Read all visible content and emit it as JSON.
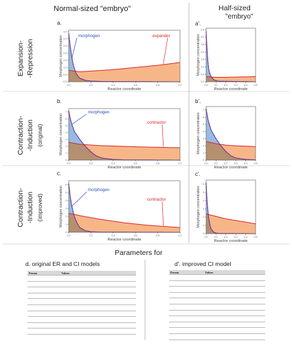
{
  "headers": {
    "normal": "Normal-sized \"embryo\"",
    "half_line1": "Half-sized",
    "half_line2": "\"embryo\""
  },
  "row_labels": [
    {
      "line1": "Expansion-",
      "line2": "-Repression",
      "sub": ""
    },
    {
      "line1": "Contraction-",
      "line2": "-Induction",
      "sub": "(original)"
    },
    {
      "line1": "Contraction-",
      "line2": "-Induction",
      "sub": "(improved)"
    }
  ],
  "colors": {
    "morphogen": "#2a4fb8",
    "morphogen_fill": "#8fb8e0",
    "regulator": "#d62728",
    "regulator_fill": "#f7b688",
    "overlap_fill": "#b59070",
    "dashed": "#b0166e"
  },
  "chart_data": [
    {
      "panel": "a.",
      "type": "area",
      "xlabel": "Reactor coordinate",
      "ylabel": "Morphogen concentration",
      "xticks": [
        "0.0",
        "0.2",
        "0.4",
        "0.6",
        "0.8",
        "1.0"
      ],
      "yticks": [
        "0.0",
        "0.5",
        "1.0",
        "1.5",
        "2.0",
        "2.5",
        "3.0",
        "3.5"
      ],
      "xlim": [
        0,
        1
      ],
      "ylim": [
        0,
        3.6
      ],
      "annotations": [
        "morphogen",
        "expander"
      ],
      "series": [
        {
          "name": "morphogen",
          "x": [
            0,
            0.02,
            0.04,
            0.06,
            0.08,
            0.1,
            0.15,
            0.2,
            0.3,
            1.0
          ],
          "values": [
            3.4,
            2.1,
            1.2,
            0.7,
            0.4,
            0.25,
            0.1,
            0.05,
            0.02,
            0.0
          ]
        },
        {
          "name": "expander",
          "x": [
            0,
            0.1,
            0.2,
            0.4,
            0.6,
            0.8,
            1.0
          ],
          "values": [
            0.8,
            0.7,
            0.75,
            0.85,
            1.0,
            1.15,
            1.35
          ]
        }
      ]
    },
    {
      "panel": "b.",
      "type": "area",
      "xlabel": "Reactor coordinate",
      "ylabel": "Morphogen concentration",
      "xticks": [
        "0.0",
        "0.2",
        "0.4",
        "0.6",
        "0.8",
        "1.0"
      ],
      "yticks": [
        "0",
        "1",
        "2",
        "3",
        "4",
        "5",
        "6",
        "7"
      ],
      "xlim": [
        0,
        1
      ],
      "ylim": [
        0,
        7.5
      ],
      "annotations": [
        "morphogen",
        "contractor"
      ],
      "series": [
        {
          "name": "morphogen",
          "x": [
            0,
            0.02,
            0.05,
            0.1,
            0.15,
            0.2,
            0.25,
            0.3,
            0.4,
            0.5,
            1.0
          ],
          "values": [
            7.2,
            5.6,
            4.2,
            3.0,
            2.0,
            1.2,
            0.6,
            0.3,
            0.1,
            0.03,
            0.0
          ]
        },
        {
          "name": "contractor",
          "x": [
            0,
            0.1,
            0.3,
            0.5,
            0.7,
            1.0
          ],
          "values": [
            2.6,
            2.3,
            2.1,
            2.0,
            1.9,
            1.8
          ]
        }
      ]
    },
    {
      "panel": "c.",
      "type": "area",
      "xlabel": "Reactor coordinate",
      "ylabel": "Morphogen concentration",
      "xticks": [
        "0.0",
        "0.2",
        "0.4",
        "0.6",
        "0.8",
        "1.0"
      ],
      "yticks": [
        "0",
        "1",
        "2",
        "3",
        "4",
        "5",
        "6"
      ],
      "xlim": [
        0,
        1
      ],
      "ylim": [
        0,
        6.5
      ],
      "annotations": [
        "morphogen",
        "contractor"
      ],
      "series": [
        {
          "name": "morphogen",
          "x": [
            0,
            0.02,
            0.05,
            0.08,
            0.1,
            0.15,
            0.2,
            0.3,
            1.0
          ],
          "values": [
            6.2,
            3.8,
            2.0,
            1.0,
            0.6,
            0.2,
            0.07,
            0.02,
            0.0
          ]
        },
        {
          "name": "contractor",
          "x": [
            0,
            0.1,
            0.3,
            0.5,
            0.7,
            1.0
          ],
          "values": [
            2.4,
            2.1,
            1.6,
            1.2,
            0.9,
            0.6
          ]
        }
      ]
    },
    {
      "panel": "a'.",
      "type": "area",
      "xlabel": "Reactor coordinate",
      "ylabel": "Morphogen concentration",
      "xticks": [
        "0.0",
        "0.1",
        "0.2",
        "0.3",
        "0.4",
        "0.5"
      ],
      "yticks": [
        "0.0",
        "0.5",
        "1.0",
        "1.5",
        "2.0",
        "2.5",
        "3.0",
        "3.5"
      ],
      "xlim": [
        0,
        0.5
      ],
      "ylim": [
        0,
        3.6
      ],
      "series": [
        {
          "name": "morphogen",
          "x": [
            0,
            0.01,
            0.02,
            0.03,
            0.05,
            0.08,
            0.12,
            0.5
          ],
          "values": [
            3.4,
            2.1,
            1.2,
            0.7,
            0.35,
            0.12,
            0.04,
            0.0
          ]
        },
        {
          "name": "expander",
          "x": [
            0,
            0.1,
            0.2,
            0.3,
            0.4,
            0.5
          ],
          "values": [
            0.35,
            0.3,
            0.3,
            0.32,
            0.33,
            0.35
          ]
        }
      ]
    },
    {
      "panel": "b'.",
      "type": "area",
      "xlabel": "Reactor coordinate",
      "ylabel": "Morphogen concentration",
      "xticks": [
        "0.0",
        "0.1",
        "0.2",
        "0.3",
        "0.4",
        "0.5"
      ],
      "yticks": [
        "0",
        "1",
        "2",
        "3",
        "4",
        "5",
        "6",
        "7"
      ],
      "xlim": [
        0,
        0.5
      ],
      "ylim": [
        0,
        7.5
      ],
      "series": [
        {
          "name": "morphogen",
          "x": [
            0,
            0.02,
            0.05,
            0.1,
            0.15,
            0.2,
            0.25,
            0.3,
            0.4,
            0.5
          ],
          "values": [
            7.2,
            5.6,
            4.2,
            3.0,
            2.0,
            1.2,
            0.6,
            0.3,
            0.1,
            0.03
          ]
        },
        {
          "name": "contractor",
          "x": [
            0,
            0.1,
            0.2,
            0.3,
            0.4,
            0.5
          ],
          "values": [
            2.6,
            2.3,
            2.1,
            2.0,
            1.95,
            1.9
          ]
        }
      ]
    },
    {
      "panel": "c'.",
      "type": "area",
      "xlabel": "Reactor coordinate",
      "ylabel": "Morphogen concentration",
      "xticks": [
        "0.0",
        "0.1",
        "0.2",
        "0.3",
        "0.4",
        "0.5"
      ],
      "yticks": [
        "0",
        "1",
        "2",
        "3",
        "4",
        "5",
        "6"
      ],
      "xlim": [
        0,
        0.5
      ],
      "ylim": [
        0,
        6.5
      ],
      "series": [
        {
          "name": "morphogen",
          "x": [
            0,
            0.01,
            0.025,
            0.04,
            0.05,
            0.075,
            0.1,
            0.15,
            0.5
          ],
          "values": [
            6.2,
            3.8,
            2.0,
            1.0,
            0.6,
            0.2,
            0.07,
            0.02,
            0.0
          ]
        },
        {
          "name": "contractor",
          "x": [
            0,
            0.1,
            0.2,
            0.3,
            0.4,
            0.5
          ],
          "values": [
            2.4,
            2.1,
            1.8,
            1.6,
            1.4,
            1.2
          ]
        }
      ]
    }
  ],
  "params": {
    "title": "Parameters for",
    "d_title": "d. original ER and CI models",
    "dp_title": "d'. improved CI model",
    "col_param": "Param",
    "col_value": "Values"
  }
}
